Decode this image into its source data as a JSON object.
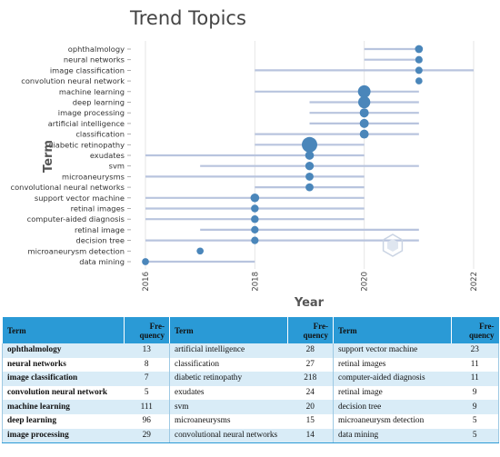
{
  "chart_data": {
    "type": "scatter",
    "title": "Trend Topics",
    "xlabel": "Year",
    "ylabel": "Term",
    "xlim": [
      2016,
      2022
    ],
    "x_ticks": [
      "2016",
      "2018",
      "2020",
      "2022"
    ],
    "grid": "vertical",
    "color": "#4a86ba",
    "range_color": "#b8c4de",
    "terms": [
      {
        "term": "ophthalmology",
        "start": 2020,
        "median": 2021,
        "end": 2021,
        "freq": 13
      },
      {
        "term": "neural networks",
        "start": 2020,
        "median": 2021,
        "end": 2021,
        "freq": 8
      },
      {
        "term": "image classification",
        "start": 2018,
        "median": 2021,
        "end": 2022,
        "freq": 7
      },
      {
        "term": "convolution neural network",
        "start": 2021,
        "median": 2021,
        "end": 2021,
        "freq": 5
      },
      {
        "term": "machine learning",
        "start": 2018,
        "median": 2020,
        "end": 2021,
        "freq": 111
      },
      {
        "term": "deep learning",
        "start": 2019,
        "median": 2020,
        "end": 2021,
        "freq": 96
      },
      {
        "term": "image processing",
        "start": 2019,
        "median": 2020,
        "end": 2021,
        "freq": 29
      },
      {
        "term": "artificial intelligence",
        "start": 2019,
        "median": 2020,
        "end": 2021,
        "freq": 28
      },
      {
        "term": "classification",
        "start": 2018,
        "median": 2020,
        "end": 2021,
        "freq": 27
      },
      {
        "term": "diabetic retinopathy",
        "start": 2018,
        "median": 2019,
        "end": 2020,
        "freq": 218
      },
      {
        "term": "exudates",
        "start": 2016,
        "median": 2019,
        "end": 2020,
        "freq": 24
      },
      {
        "term": "svm",
        "start": 2017,
        "median": 2019,
        "end": 2021,
        "freq": 20
      },
      {
        "term": "microaneurysms",
        "start": 2016,
        "median": 2019,
        "end": 2020,
        "freq": 15
      },
      {
        "term": "convolutional neural networks",
        "start": 2018,
        "median": 2019,
        "end": 2020,
        "freq": 14
      },
      {
        "term": "support vector machine",
        "start": 2016,
        "median": 2018,
        "end": 2020,
        "freq": 23
      },
      {
        "term": "retinal images",
        "start": 2016,
        "median": 2018,
        "end": 2020,
        "freq": 11
      },
      {
        "term": "computer-aided diagnosis",
        "start": 2016,
        "median": 2018,
        "end": 2020,
        "freq": 11
      },
      {
        "term": "retinal image",
        "start": 2017,
        "median": 2018,
        "end": 2021,
        "freq": 9
      },
      {
        "term": "decision tree",
        "start": 2016,
        "median": 2018,
        "end": 2021,
        "freq": 9
      },
      {
        "term": "microaneurysm detection",
        "start": 2017,
        "median": 2017,
        "end": 2017,
        "freq": 5
      },
      {
        "term": "data mining",
        "start": 2016,
        "median": 2016,
        "end": 2018,
        "freq": 5
      }
    ]
  },
  "table": {
    "headers": [
      "Term",
      "Fre-quency",
      "Term",
      "Fre-quency",
      "Term",
      "Fre-quency"
    ],
    "rows": [
      [
        "ophthalmology",
        "13",
        "artificial intelligence",
        "28",
        "support vector machine",
        "23"
      ],
      [
        "neural networks",
        "8",
        "classification",
        "27",
        "retinal images",
        "11"
      ],
      [
        "image classification",
        "7",
        "diabetic retinopathy",
        "218",
        "computer-aided diagnosis",
        "11"
      ],
      [
        "convolution neural network",
        "5",
        "exudates",
        "24",
        "retinal image",
        "9"
      ],
      [
        "machine learning",
        "111",
        "svm",
        "20",
        "decision tree",
        "9"
      ],
      [
        "deep learning",
        "96",
        "microaneurysms",
        "15",
        "microaneurysm detection",
        "5"
      ],
      [
        "image processing",
        "29",
        "convolutional neural networks",
        "14",
        "data mining",
        "5"
      ]
    ]
  }
}
